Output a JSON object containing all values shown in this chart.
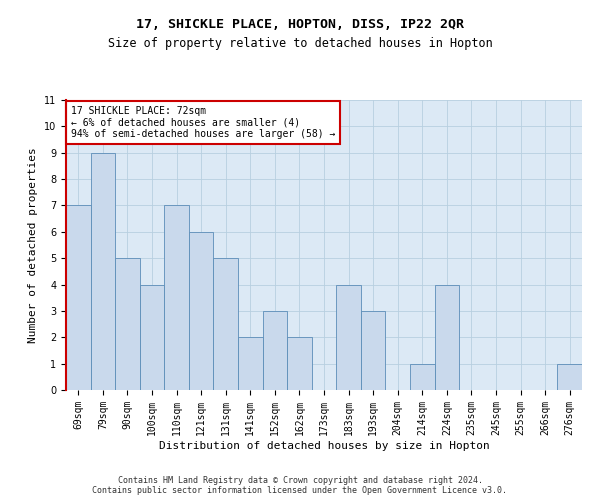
{
  "title1": "17, SHICKLE PLACE, HOPTON, DISS, IP22 2QR",
  "title2": "Size of property relative to detached houses in Hopton",
  "xlabel": "Distribution of detached houses by size in Hopton",
  "ylabel": "Number of detached properties",
  "categories": [
    "69sqm",
    "79sqm",
    "90sqm",
    "100sqm",
    "110sqm",
    "121sqm",
    "131sqm",
    "141sqm",
    "152sqm",
    "162sqm",
    "173sqm",
    "183sqm",
    "193sqm",
    "204sqm",
    "214sqm",
    "224sqm",
    "235sqm",
    "245sqm",
    "255sqm",
    "266sqm",
    "276sqm"
  ],
  "values": [
    7,
    9,
    5,
    4,
    7,
    6,
    5,
    2,
    3,
    2,
    0,
    4,
    3,
    0,
    1,
    4,
    0,
    0,
    0,
    0,
    1
  ],
  "bar_color": "#c9d9ec",
  "bar_edgecolor": "#5b8db8",
  "annotation_text": "17 SHICKLE PLACE: 72sqm\n← 6% of detached houses are smaller (4)\n94% of semi-detached houses are larger (58) →",
  "annotation_box_color": "#ffffff",
  "annotation_box_edgecolor": "#cc0000",
  "ylim": [
    0,
    11
  ],
  "yticks": [
    0,
    1,
    2,
    3,
    4,
    5,
    6,
    7,
    8,
    9,
    10,
    11
  ],
  "grid_color": "#b8cfe0",
  "bg_color": "#dce9f5",
  "footer1": "Contains HM Land Registry data © Crown copyright and database right 2024.",
  "footer2": "Contains public sector information licensed under the Open Government Licence v3.0.",
  "marker_color": "#cc0000",
  "title1_fontsize": 9.5,
  "title2_fontsize": 8.5,
  "xlabel_fontsize": 8,
  "ylabel_fontsize": 8,
  "tick_fontsize": 7,
  "footer_fontsize": 6
}
